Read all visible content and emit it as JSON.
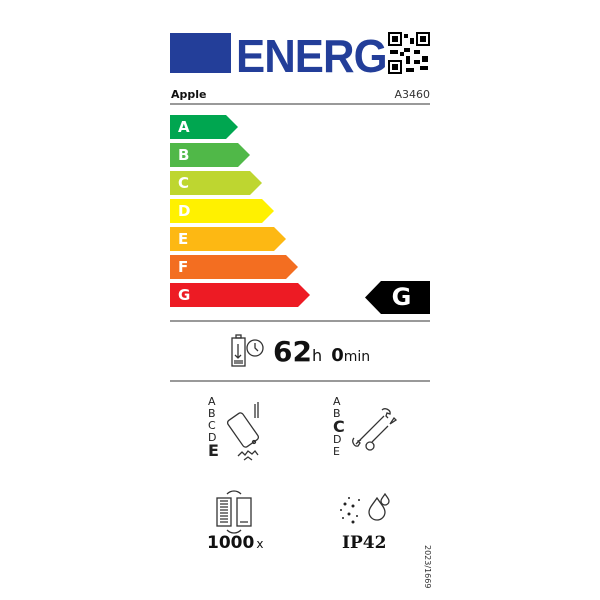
{
  "header": {
    "logo_text": "ENERG",
    "brand": "Apple",
    "model": "A3460"
  },
  "energy_classes": [
    {
      "label": "A",
      "color": "#00a650"
    },
    {
      "label": "B",
      "color": "#50b848"
    },
    {
      "label": "C",
      "color": "#bed630"
    },
    {
      "label": "D",
      "color": "#fff100"
    },
    {
      "label": "E",
      "color": "#fdb813"
    },
    {
      "label": "F",
      "color": "#f36e21"
    },
    {
      "label": "G",
      "color": "#ed1b24"
    }
  ],
  "rating": "G",
  "battery_endurance": {
    "hours": "62",
    "hours_unit": "h",
    "minutes": "0",
    "minutes_unit": "min"
  },
  "drop_resistance": {
    "classes": [
      "A",
      "B",
      "C",
      "D",
      "E"
    ],
    "selected": "E"
  },
  "repairability": {
    "classes": [
      "A",
      "B",
      "C",
      "D",
      "E"
    ],
    "selected": "C"
  },
  "battery_cycles": {
    "value": "1000",
    "unit": "x"
  },
  "ingress_protection": "IP42",
  "regulation": "2023/1669"
}
